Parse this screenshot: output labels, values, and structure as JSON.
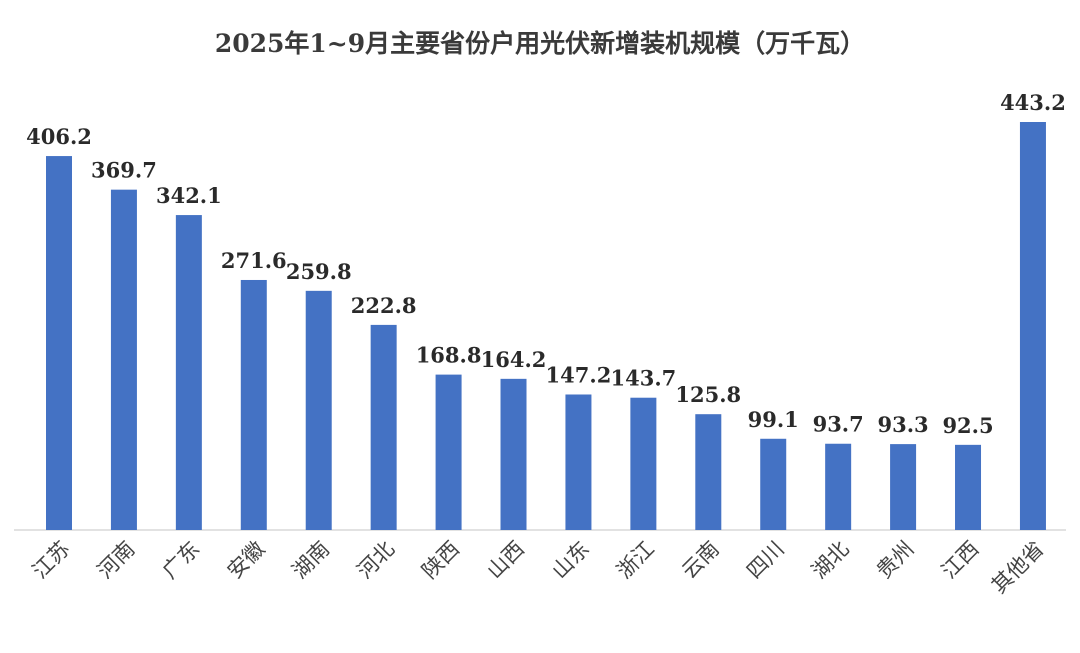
{
  "chart_data": {
    "type": "bar",
    "title": "2025年1~9月主要省份户用光伏新增装机规模（万千瓦）",
    "xlabel": "",
    "ylabel": "",
    "categories": [
      "江苏",
      "河南",
      "广东",
      "安徽",
      "湖南",
      "河北",
      "陕西",
      "山西",
      "山东",
      "浙江",
      "云南",
      "四川",
      "湖北",
      "贵州",
      "江西",
      "其他省"
    ],
    "values": [
      406.2,
      369.7,
      342.1,
      271.6,
      259.8,
      222.8,
      168.8,
      164.2,
      147.2,
      143.7,
      125.8,
      99.1,
      93.7,
      93.3,
      92.5,
      443.2
    ],
    "value_labels": [
      "406.2",
      "369.7",
      "342.1",
      "271.6",
      "259.8",
      "222.8",
      "168.8",
      "164.2",
      "147.2",
      "143.7",
      "125.8",
      "99.1",
      "93.7",
      "93.3",
      "92.5",
      "443.2"
    ],
    "ylim": [
      0,
      443.2
    ],
    "grid": false,
    "legend": "none",
    "bar_color": "#4472C4",
    "axis_color": "#D9D9D9"
  }
}
